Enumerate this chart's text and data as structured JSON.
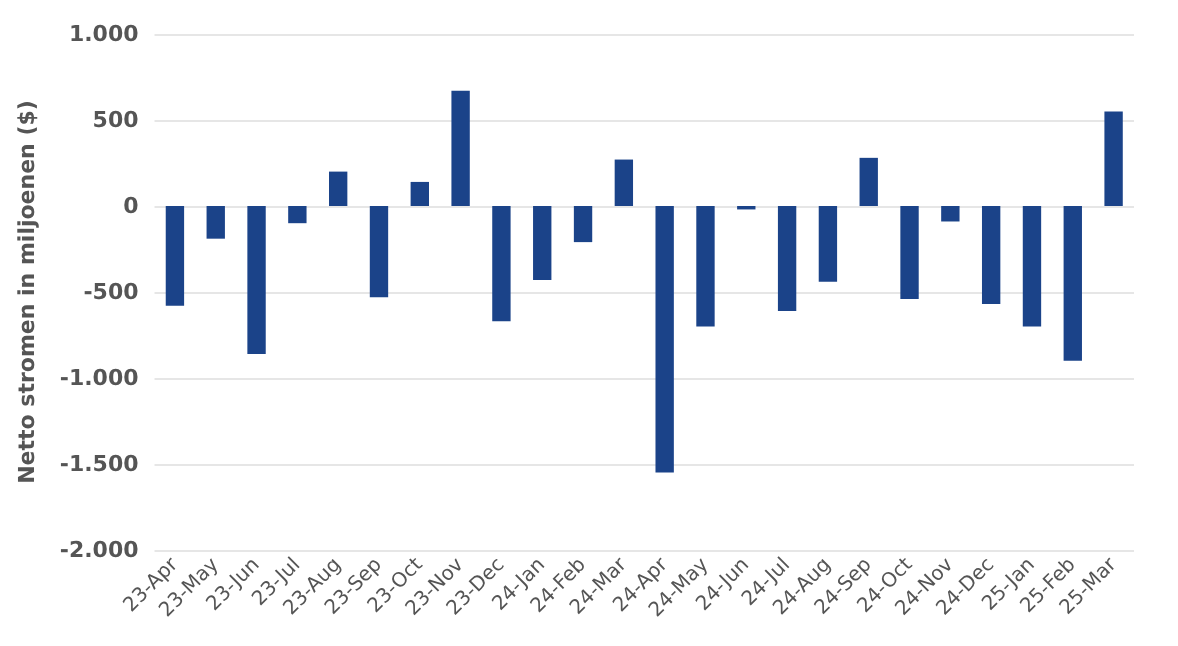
{
  "chart_data": {
    "type": "bar",
    "ylabel": "Netto stromen in miljoenen ($)",
    "categories": [
      "23-Apr",
      "23-May",
      "23-Jun",
      "23-Jul",
      "23-Aug",
      "23-Sep",
      "23-Oct",
      "23-Nov",
      "23-Dec",
      "24-Jan",
      "24-Feb",
      "24-Mar",
      "24-Apr",
      "24-May",
      "24-Jun",
      "24-Jul",
      "24-Aug",
      "24-Sep",
      "24-Oct",
      "24-Nov",
      "24-Dec",
      "25-Jan",
      "25-Feb",
      "25-Mar"
    ],
    "values": [
      -580,
      -190,
      -860,
      -100,
      200,
      -530,
      140,
      670,
      -670,
      -430,
      -210,
      270,
      -1550,
      -700,
      -20,
      -610,
      -440,
      280,
      -540,
      -90,
      -570,
      -700,
      -900,
      550
    ],
    "color": "#1b4389",
    "ylim": [
      -2000,
      1000
    ],
    "yticks": [
      {
        "value": -2000,
        "label": "-2.000"
      },
      {
        "value": -1500,
        "label": "-1.500"
      },
      {
        "value": -1000,
        "label": "-1.000"
      },
      {
        "value": -500,
        "label": "-500"
      },
      {
        "value": 0,
        "label": "0"
      },
      {
        "value": 500,
        "label": "500"
      },
      {
        "value": 1000,
        "label": "1.000"
      }
    ],
    "grid": "y"
  }
}
